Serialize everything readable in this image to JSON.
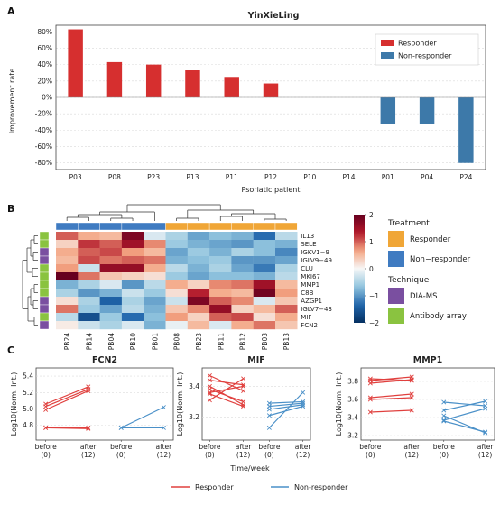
{
  "figure": {
    "panels": {
      "a": "A",
      "b": "B",
      "c": "C"
    }
  },
  "chart_data": [
    {
      "type": "bar",
      "title": "YinXieLing",
      "ylabel": "Improvement rate",
      "xlabel": "Psoriatic patient",
      "categories": [
        "P03",
        "P08",
        "P23",
        "P13",
        "P11",
        "P12",
        "P10",
        "P14",
        "P01",
        "P04",
        "P24"
      ],
      "values": [
        83,
        43,
        40,
        33,
        25,
        17,
        0,
        0,
        -33,
        -33,
        -80
      ],
      "groups": [
        "Responder",
        "Responder",
        "Responder",
        "Responder",
        "Responder",
        "Responder",
        "Responder",
        "Responder",
        "Non-responder",
        "Non-responder",
        "Non-responder"
      ],
      "ylim": [
        -88,
        88
      ],
      "yticks": [
        "80%",
        "60%",
        "40%",
        "20%",
        "0%",
        "-20%",
        "-40%",
        "-60%",
        "-80%"
      ],
      "legend": {
        "position": "top-right",
        "items": [
          {
            "label": "Responder",
            "color": "#d62f2f"
          },
          {
            "label": "Non-responder",
            "color": "#3d79a9"
          }
        ]
      }
    },
    {
      "type": "heatmap",
      "rows": [
        "IL13",
        "SELE",
        "IGKV1−9",
        "IGLV9−49",
        "CLU",
        "MKI67",
        "MMP1",
        "C8B",
        "AZGP1",
        "IGLV7−43",
        "MIF",
        "FCN2"
      ],
      "columns": [
        "PB24",
        "PB14",
        "PB04",
        "PB10",
        "PB01",
        "PB08",
        "PB23",
        "PB11",
        "PB12",
        "PB03",
        "PB13"
      ],
      "column_groups": [
        "Non-responder",
        "Non-responder",
        "Non-responder",
        "Non-responder",
        "Non-responder",
        "Responder",
        "Responder",
        "Responder",
        "Responder",
        "Responder",
        "Responder"
      ],
      "row_technique": [
        "Antibody array",
        "Antibody array",
        "DIA-MS",
        "DIA-MS",
        "Antibody array",
        "Antibody array",
        "Antibody array",
        "Antibody array",
        "DIA-MS",
        "DIA-MS",
        "Antibody array",
        "DIA-MS"
      ],
      "values": [
        [
          1.0,
          0.6,
          0.5,
          1.8,
          -0.2,
          -0.5,
          -0.9,
          -0.7,
          -0.8,
          -1.3,
          -0.4
        ],
        [
          0.3,
          1.2,
          1.0,
          1.5,
          0.8,
          -0.6,
          -0.8,
          -0.9,
          -1.0,
          -0.7,
          -0.8
        ],
        [
          0.6,
          1.0,
          1.1,
          0.7,
          0.5,
          -0.9,
          -0.6,
          -0.8,
          -0.5,
          -0.7,
          -1.1
        ],
        [
          0.5,
          1.1,
          0.9,
          1.0,
          0.9,
          -0.8,
          -0.7,
          -0.6,
          -1.0,
          -1.0,
          -0.9
        ],
        [
          0.7,
          -0.3,
          1.6,
          1.6,
          0.6,
          -0.4,
          -0.8,
          -0.5,
          -0.9,
          -1.2,
          -0.5
        ],
        [
          2.0,
          0.9,
          0.4,
          0.3,
          0.2,
          -0.6,
          -0.9,
          -0.7,
          -0.7,
          -0.8,
          -0.4
        ],
        [
          -0.8,
          -0.5,
          -0.2,
          -1.0,
          -0.4,
          0.6,
          0.3,
          0.8,
          0.9,
          1.5,
          0.5
        ],
        [
          -0.5,
          -1.0,
          -0.8,
          -0.3,
          -0.6,
          0.2,
          1.3,
          0.6,
          0.5,
          1.9,
          0.7
        ],
        [
          0.2,
          -0.5,
          -1.4,
          -0.5,
          -0.9,
          -0.3,
          1.8,
          1.0,
          0.8,
          -0.2,
          0.4
        ],
        [
          0.9,
          -0.6,
          -0.9,
          -0.4,
          -0.8,
          0.4,
          0.8,
          1.6,
          0.3,
          0.5,
          1.0
        ],
        [
          -0.4,
          -1.6,
          -0.6,
          -1.3,
          -0.7,
          0.7,
          0.3,
          1.0,
          1.1,
          0.2,
          0.6
        ],
        [
          0.1,
          -0.3,
          -0.5,
          -0.2,
          -0.8,
          -0.1,
          0.5,
          -0.2,
          0.6,
          0.9,
          0.4
        ]
      ],
      "colorbar": {
        "ticks": [
          "2",
          "1",
          "0",
          "−1",
          "−2"
        ],
        "range": [
          -2,
          2
        ]
      },
      "legend": {
        "treatment_title": "Treatment",
        "treatment": [
          {
            "label": "Responder",
            "color": "#f0a637"
          },
          {
            "label": "Non−responder",
            "color": "#3f7bc1"
          }
        ],
        "technique_title": "Technique",
        "technique": [
          {
            "label": "DIA-MS",
            "color": "#7a4fa0"
          },
          {
            "label": "Antibody array",
            "color": "#8ac340"
          }
        ]
      }
    },
    {
      "type": "line",
      "title": "FCN2",
      "ylabel": "Log10(Norm. Int.)",
      "ylim": [
        4.62,
        5.5
      ],
      "yticks": [
        "5.4",
        "5.2",
        "5.0",
        "4.8"
      ],
      "xticks": [
        {
          "top": "before",
          "bottom": "(0)"
        },
        {
          "top": "after",
          "bottom": "(12)"
        },
        {
          "top": "before",
          "bottom": "(0)"
        },
        {
          "top": "after",
          "bottom": "(12)"
        }
      ],
      "responder": [
        [
          5.06,
          5.27
        ],
        [
          5.03,
          5.24
        ],
        [
          4.99,
          5.22
        ],
        [
          4.77,
          4.77
        ],
        [
          4.77,
          4.76
        ]
      ],
      "non_responder": [
        [
          4.77,
          5.02
        ],
        [
          4.77,
          4.77
        ]
      ]
    },
    {
      "type": "line",
      "title": "MIF",
      "xlabel": "Time/week",
      "ylabel": "Log10(Norm. Int.)",
      "ylim": [
        3.05,
        3.52
      ],
      "yticks": [
        "3.4",
        "3.2"
      ],
      "xticks": [
        {
          "top": "before",
          "bottom": "(0)"
        },
        {
          "top": "after",
          "bottom": "(12)"
        },
        {
          "top": "before",
          "bottom": "(0)"
        },
        {
          "top": "after",
          "bottom": "(12)"
        }
      ],
      "responder": [
        [
          3.47,
          3.37
        ],
        [
          3.44,
          3.41
        ],
        [
          3.4,
          3.28
        ],
        [
          3.38,
          3.3
        ],
        [
          3.36,
          3.4
        ],
        [
          3.35,
          3.27
        ],
        [
          3.31,
          3.45
        ]
      ],
      "non_responder": [
        [
          3.13,
          3.36
        ],
        [
          3.21,
          3.27
        ],
        [
          3.25,
          3.28
        ],
        [
          3.27,
          3.29
        ],
        [
          3.29,
          3.3
        ]
      ]
    },
    {
      "type": "line",
      "title": "MMP1",
      "ylabel": "Log10(Norm. Int.)",
      "ylim": [
        3.15,
        3.95
      ],
      "yticks": [
        "3.8",
        "3.6",
        "3.4",
        "3.2"
      ],
      "xticks": [
        {
          "top": "before",
          "bottom": "(0)"
        },
        {
          "top": "after",
          "bottom": "(12)"
        },
        {
          "top": "before",
          "bottom": "(0)"
        },
        {
          "top": "after",
          "bottom": "(12)"
        }
      ],
      "responder": [
        [
          3.83,
          3.81
        ],
        [
          3.81,
          3.85
        ],
        [
          3.78,
          3.82
        ],
        [
          3.62,
          3.66
        ],
        [
          3.6,
          3.62
        ],
        [
          3.46,
          3.48
        ]
      ],
      "non_responder": [
        [
          3.57,
          3.53
        ],
        [
          3.48,
          3.58
        ],
        [
          3.42,
          3.23
        ],
        [
          3.37,
          3.5
        ],
        [
          3.36,
          3.24
        ]
      ]
    }
  ],
  "legend_c": {
    "responder": "Responder",
    "non_responder": "Non-responder"
  },
  "colors": {
    "responder": "#d62f2f",
    "non_responder": "#3d79a9",
    "line_red": "#e0403e",
    "line_blue": "#4a90c8"
  }
}
